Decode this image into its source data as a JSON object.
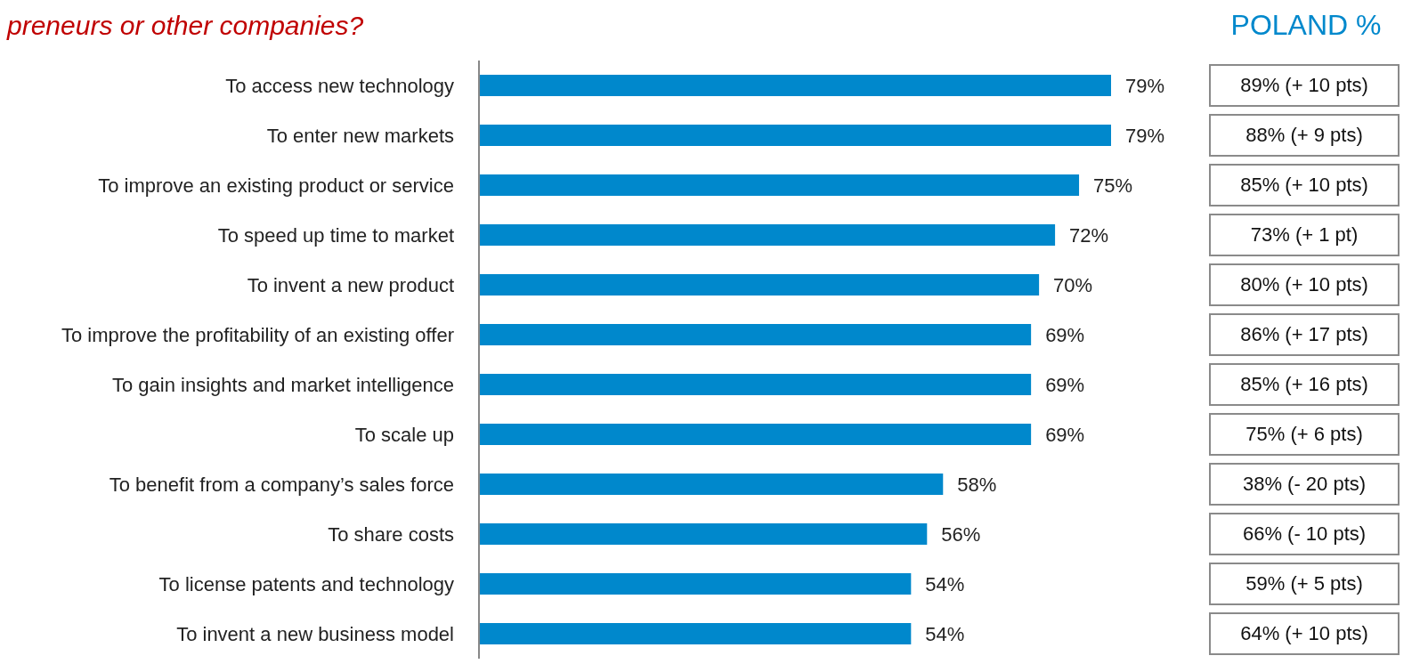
{
  "chart_data": {
    "type": "bar",
    "orientation": "horizontal",
    "title": "preneurs or other companies?",
    "categories": [
      "To access new technology",
      "To enter new markets",
      "To improve an existing product or service",
      "To speed up time to market",
      "To invent a new product",
      "To improve the profitability of an existing offer",
      "To gain insights and market intelligence",
      "To scale up",
      "To benefit from a company’s sales force",
      "To share costs",
      "To license patents and technology",
      "To invent a new business model"
    ],
    "values": [
      79,
      79,
      75,
      72,
      70,
      69,
      69,
      69,
      58,
      56,
      54,
      54
    ],
    "value_labels": [
      "79%",
      "79%",
      "75%",
      "72%",
      "70%",
      "69%",
      "69%",
      "69%",
      "58%",
      "56%",
      "54%",
      "54%"
    ],
    "color": "#0088cc",
    "tick_labels": "y",
    "grid": false,
    "annotations": [
      "POLAND %",
      "89% (+ 10 pts)",
      "88% (+ 9 pts)",
      "85% (+ 10 pts)",
      "73% (+ 1 pt)",
      "80% (+ 10 pts)",
      "86% (+ 17 pts)",
      "85% (+ 16 pts)",
      "75% (+ 6 pts)",
      "38% (- 20 pts)",
      "66% (- 10 pts)",
      "59% (+ 5 pts)",
      "64% (+ 10 pts)"
    ]
  }
}
